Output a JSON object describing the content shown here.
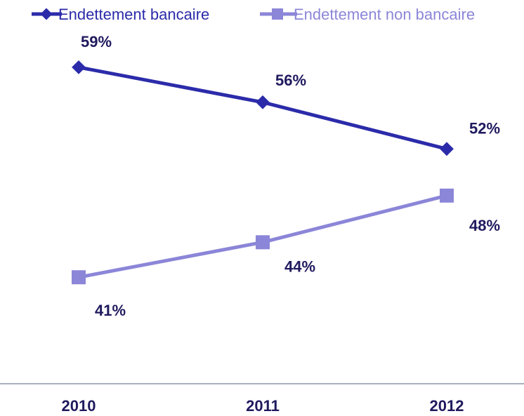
{
  "chart_data": {
    "type": "line",
    "categories": [
      "2010",
      "2011",
      "2012"
    ],
    "series": [
      {
        "name": "Endettement bancaire",
        "values": [
          59,
          56,
          52
        ],
        "labels": [
          "59%",
          "56%",
          "52%"
        ],
        "color": "#2b2baa",
        "marker": "diamond"
      },
      {
        "name": "Endettement non bancaire",
        "values": [
          41,
          44,
          48
        ],
        "labels": [
          "41%",
          "44%",
          "48%"
        ],
        "color": "#8b86d8",
        "marker": "square"
      }
    ],
    "title": "",
    "xlabel": "",
    "ylabel": "",
    "ylim": [
      35,
      62
    ],
    "grid": false,
    "legend": "top"
  }
}
